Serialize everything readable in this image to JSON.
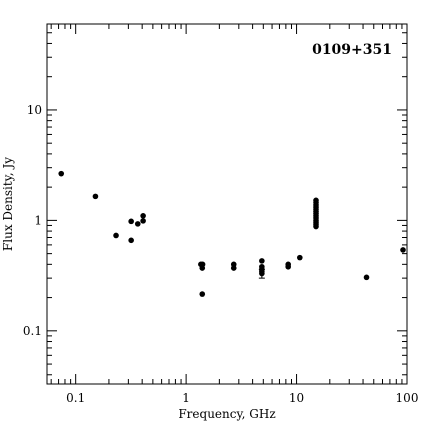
{
  "chart_data": {
    "type": "scatter",
    "title": "0109+351",
    "xlabel": "Frequency, GHz",
    "ylabel": "Flux Density, Jy",
    "xscale": "log",
    "yscale": "log",
    "xlim": [
      0.055,
      100
    ],
    "ylim": [
      0.033,
      60
    ],
    "x_ticks": [
      {
        "value": 0.1,
        "label": "0.1"
      },
      {
        "value": 1,
        "label": "1"
      },
      {
        "value": 10,
        "label": "10"
      },
      {
        "value": 100,
        "label": "100"
      }
    ],
    "y_ticks": [
      {
        "value": 0.1,
        "label": "0.1"
      },
      {
        "value": 1,
        "label": "1"
      },
      {
        "value": 10,
        "label": "10"
      }
    ],
    "label_position": "top-right",
    "grid": false,
    "points": [
      {
        "x": 0.074,
        "y": 2.65
      },
      {
        "x": 0.151,
        "y": 1.65
      },
      {
        "x": 0.232,
        "y": 0.73
      },
      {
        "x": 0.318,
        "y": 0.98
      },
      {
        "x": 0.318,
        "y": 0.66
      },
      {
        "x": 0.365,
        "y": 0.93
      },
      {
        "x": 0.408,
        "y": 1.1
      },
      {
        "x": 0.408,
        "y": 0.99
      },
      {
        "x": 1.36,
        "y": 0.4
      },
      {
        "x": 1.4,
        "y": 0.37
      },
      {
        "x": 1.41,
        "y": 0.4
      },
      {
        "x": 1.4,
        "y": 0.215
      },
      {
        "x": 2.7,
        "y": 0.4
      },
      {
        "x": 2.7,
        "y": 0.37
      },
      {
        "x": 4.85,
        "y": 0.43
      },
      {
        "x": 4.85,
        "y": 0.38
      },
      {
        "x": 4.85,
        "y": 0.36
      },
      {
        "x": 4.85,
        "y": 0.345
      },
      {
        "x": 4.85,
        "y": 0.33,
        "err": [
          0.3,
          0.36
        ]
      },
      {
        "x": 8.4,
        "y": 0.4
      },
      {
        "x": 8.4,
        "y": 0.38
      },
      {
        "x": 10.7,
        "y": 0.46
      },
      {
        "x": 15,
        "y": 1.52
      },
      {
        "x": 15,
        "y": 1.45
      },
      {
        "x": 15,
        "y": 1.38
      },
      {
        "x": 15,
        "y": 1.32
      },
      {
        "x": 15,
        "y": 1.26
      },
      {
        "x": 15,
        "y": 1.2
      },
      {
        "x": 15,
        "y": 1.15
      },
      {
        "x": 15,
        "y": 1.1
      },
      {
        "x": 15,
        "y": 1.05
      },
      {
        "x": 15,
        "y": 1.0
      },
      {
        "x": 15,
        "y": 0.96
      },
      {
        "x": 15,
        "y": 0.92
      },
      {
        "x": 15,
        "y": 0.88
      },
      {
        "x": 43,
        "y": 0.305
      },
      {
        "x": 92,
        "y": 0.54
      }
    ]
  }
}
